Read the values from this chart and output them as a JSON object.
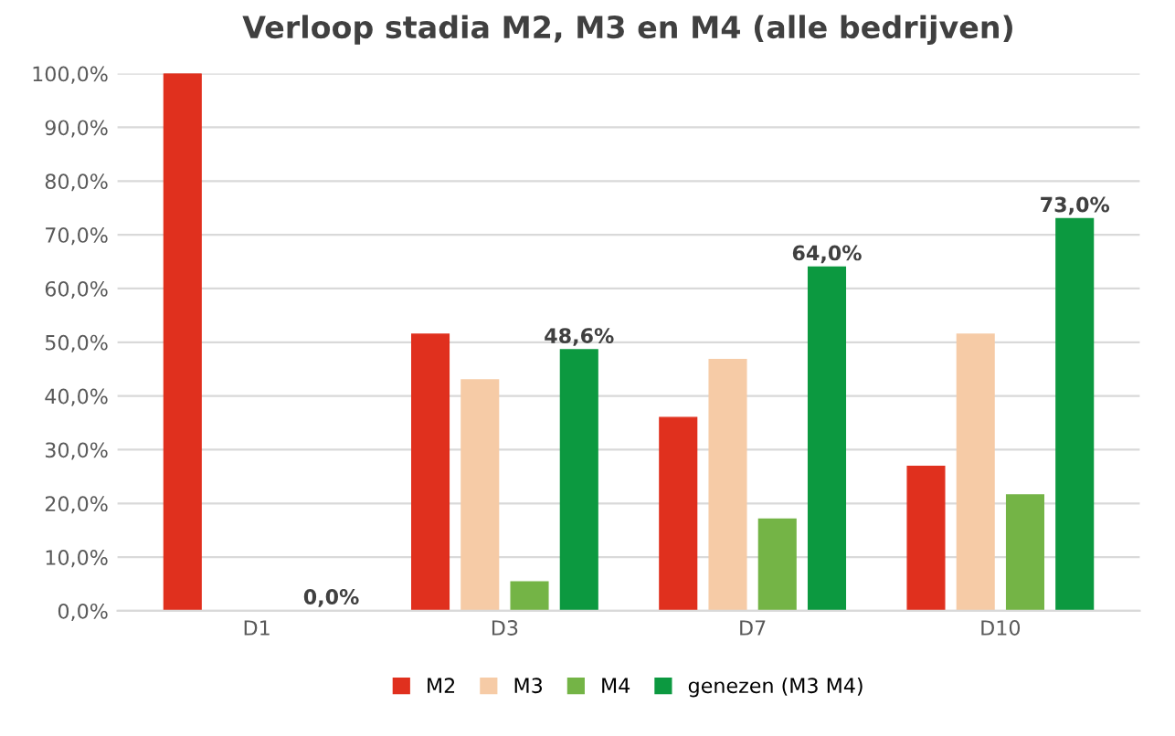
{
  "chart_data": {
    "type": "bar",
    "title": "Verloop stadia M2, M3 en M4 (alle bedrijven)",
    "categories": [
      "D1",
      "D3",
      "D7",
      "D10"
    ],
    "series": [
      {
        "name": "M2",
        "color": "#e0301e",
        "values": [
          100,
          51.5,
          36.0,
          26.9
        ]
      },
      {
        "name": "M3",
        "color": "#f6cba6",
        "values": [
          null,
          43.0,
          46.8,
          51.5
        ]
      },
      {
        "name": "M4",
        "color": "#74b446",
        "values": [
          null,
          5.4,
          17.1,
          21.6
        ]
      },
      {
        "name": "genezen (M3 M4)",
        "color": "#0c9940",
        "values": [
          0.0,
          48.6,
          64.0,
          73.0
        ],
        "value_labels": [
          "0,0%",
          "48,6%",
          "64,0%",
          "73,0%"
        ]
      }
    ],
    "ylim": [
      0,
      100
    ],
    "yticks": [
      {
        "value": 0,
        "label": "0,0%"
      },
      {
        "value": 10,
        "label": "10,0%"
      },
      {
        "value": 20,
        "label": "20,0%"
      },
      {
        "value": 30,
        "label": "30,0%"
      },
      {
        "value": 40,
        "label": "40,0%"
      },
      {
        "value": 50,
        "label": "50,0%"
      },
      {
        "value": 60,
        "label": "60,0%"
      },
      {
        "value": 70,
        "label": "70,0%"
      },
      {
        "value": 80,
        "label": "80,0%"
      },
      {
        "value": 90,
        "label": "90,0%"
      },
      {
        "value": 100,
        "label": "100,0%"
      }
    ],
    "grid": "y",
    "legend": "bottom"
  }
}
